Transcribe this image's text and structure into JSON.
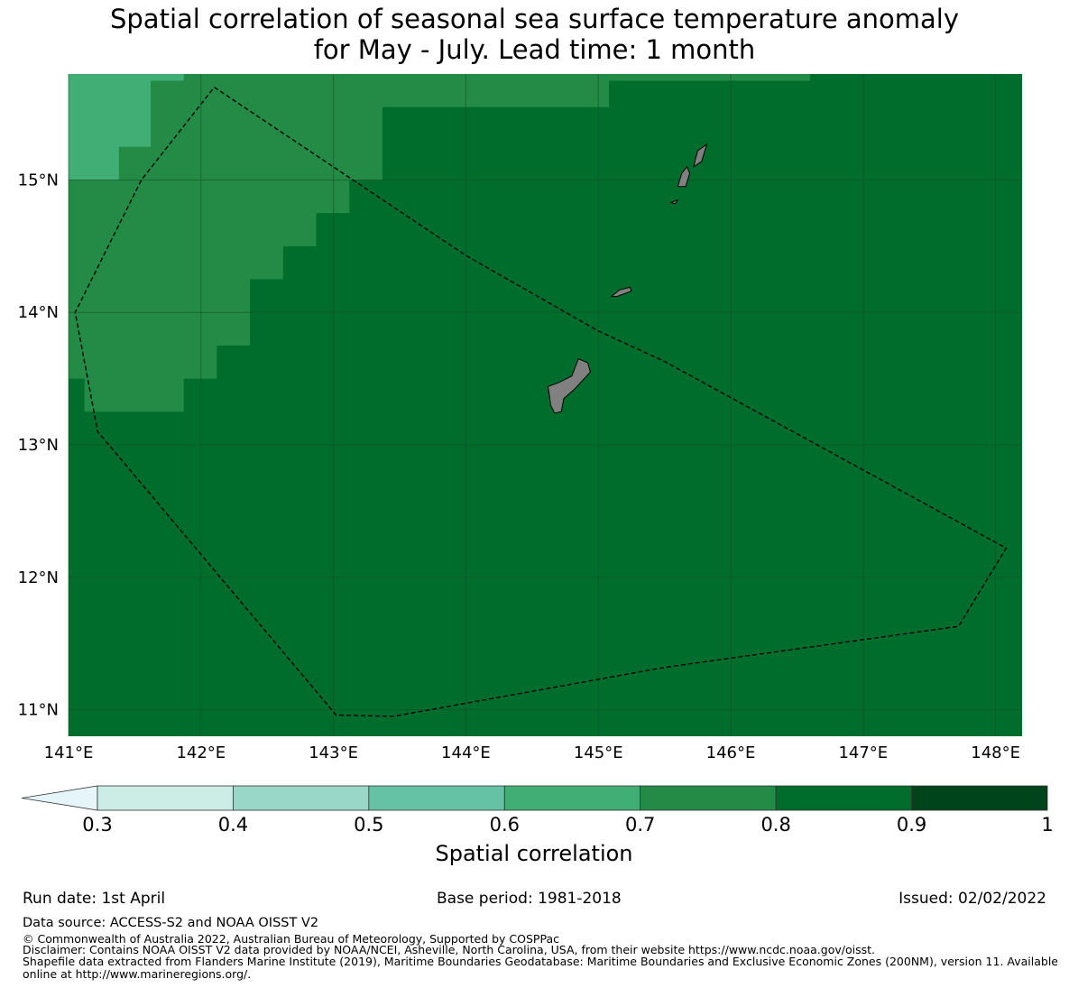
{
  "title": {
    "line1": "Spatial correlation of seasonal sea surface temperature anomaly",
    "line2": "for May - July. Lead time: 1 month"
  },
  "map": {
    "longitude_ticks": [
      "141°E",
      "142°E",
      "143°E",
      "144°E",
      "145°E",
      "146°E",
      "147°E",
      "148°E"
    ],
    "latitude_ticks": [
      "15°N",
      "14°N",
      "13°N",
      "12°N",
      "11°N"
    ],
    "extent": {
      "lon_min": 141.0,
      "lon_max": 148.2,
      "lat_min": 10.8,
      "lat_max": 15.8
    },
    "colors": {
      "r_0.6_0.7": "#41ae76",
      "r_0.7_0.8": "#238b45",
      "r_0.8_0.9": "#006d2c",
      "land": "#808080",
      "gridline": "#1a4d2a",
      "boundary": "#000000"
    },
    "correlation_cells": [
      {
        "lon": [
          141.0,
          141.85
        ],
        "lat": [
          15.8,
          15.75
        ],
        "class": "r_0.6_0.7"
      },
      {
        "lon": [
          141.0,
          141.62
        ],
        "lat": [
          15.75,
          15.25
        ],
        "class": "r_0.6_0.7"
      },
      {
        "lon": [
          141.0,
          141.38
        ],
        "lat": [
          15.25,
          15.0
        ],
        "class": "r_0.6_0.7"
      },
      {
        "lon": [
          141.62,
          141.85
        ],
        "lat": [
          15.75,
          15.75
        ],
        "class": "r_0.7_0.8"
      }
    ],
    "boundary_polygon": [
      [
        142.1,
        15.7
      ],
      [
        144.0,
        14.43
      ],
      [
        145.0,
        13.86
      ],
      [
        145.5,
        13.63
      ],
      [
        148.08,
        12.22
      ],
      [
        147.72,
        11.63
      ],
      [
        145.5,
        11.32
      ],
      [
        143.45,
        10.95
      ],
      [
        143.02,
        10.96
      ],
      [
        141.22,
        13.1
      ],
      [
        141.05,
        14.0
      ],
      [
        141.55,
        15.0
      ],
      [
        142.1,
        15.7
      ]
    ],
    "islands": [
      {
        "name": "",
        "lonlat": [
          [
            144.62,
            13.44
          ],
          [
            144.7,
            13.47
          ],
          [
            144.8,
            13.52
          ],
          [
            144.85,
            13.65
          ],
          [
            144.92,
            13.62
          ],
          [
            144.94,
            13.55
          ],
          [
            144.82,
            13.42
          ],
          [
            144.74,
            13.35
          ],
          [
            144.72,
            13.25
          ],
          [
            144.67,
            13.24
          ],
          [
            144.64,
            13.3
          ],
          [
            144.63,
            13.38
          ],
          [
            144.62,
            13.44
          ]
        ]
      },
      {
        "name": "",
        "lonlat": [
          [
            145.1,
            14.12
          ],
          [
            145.16,
            14.17
          ],
          [
            145.24,
            14.19
          ],
          [
            145.25,
            14.16
          ],
          [
            145.14,
            14.12
          ],
          [
            145.1,
            14.12
          ]
        ]
      },
      {
        "name": "",
        "lonlat": [
          [
            145.6,
            14.95
          ],
          [
            145.63,
            15.05
          ],
          [
            145.67,
            15.1
          ],
          [
            145.69,
            15.05
          ],
          [
            145.66,
            14.95
          ],
          [
            145.6,
            14.95
          ]
        ]
      },
      {
        "name": "",
        "lonlat": [
          [
            145.72,
            15.1
          ],
          [
            145.75,
            15.22
          ],
          [
            145.82,
            15.27
          ],
          [
            145.78,
            15.14
          ],
          [
            145.72,
            15.1
          ]
        ]
      },
      {
        "name": "",
        "lonlat": [
          [
            145.55,
            14.83
          ],
          [
            145.6,
            14.85
          ],
          [
            145.58,
            14.82
          ],
          [
            145.55,
            14.83
          ]
        ]
      }
    ]
  },
  "colorbar": {
    "label": "Spatial correlation",
    "ticks": [
      "0.3",
      "0.4",
      "0.5",
      "0.6",
      "0.7",
      "0.8",
      "0.9",
      "1"
    ],
    "extend": "min",
    "bins": [
      {
        "from": 0.3,
        "to": 0.4,
        "color": "#ccece6"
      },
      {
        "from": 0.4,
        "to": 0.5,
        "color": "#99d8c9"
      },
      {
        "from": 0.5,
        "to": 0.6,
        "color": "#66c2a4"
      },
      {
        "from": 0.6,
        "to": 0.7,
        "color": "#41ae76"
      },
      {
        "from": 0.7,
        "to": 0.8,
        "color": "#238b45"
      },
      {
        "from": 0.8,
        "to": 0.9,
        "color": "#006d2c"
      },
      {
        "from": 0.9,
        "to": 1.0,
        "color": "#00441b"
      }
    ],
    "under_color": "#e5f5f9"
  },
  "footer": {
    "run_date": "Run date: 1st April",
    "base_period": "Base period: 1981-2018",
    "issued": "Issued: 02/02/2022",
    "data_source": "Data source: ACCESS-S2 and NOAA OISST V2",
    "copyright": "© Commonwealth of Australia 2022, Australian Bureau of Meteorology, Supported by COSPPac",
    "disclaimer": "Disclaimer: Contains NOAA OISST V2 data provided by NOAA/NCEI, Asheville, North Carolina, USA, from their website https://www.ncdc.noaa.gov/oisst.",
    "shapefile": "Shapefile data extracted from Flanders Marine Institute (2019), Maritime Boundaries Geodatabase: Maritime Boundaries and Exclusive Economic Zones (200NM), version 11. Available online at http://www.marineregions.org/."
  }
}
